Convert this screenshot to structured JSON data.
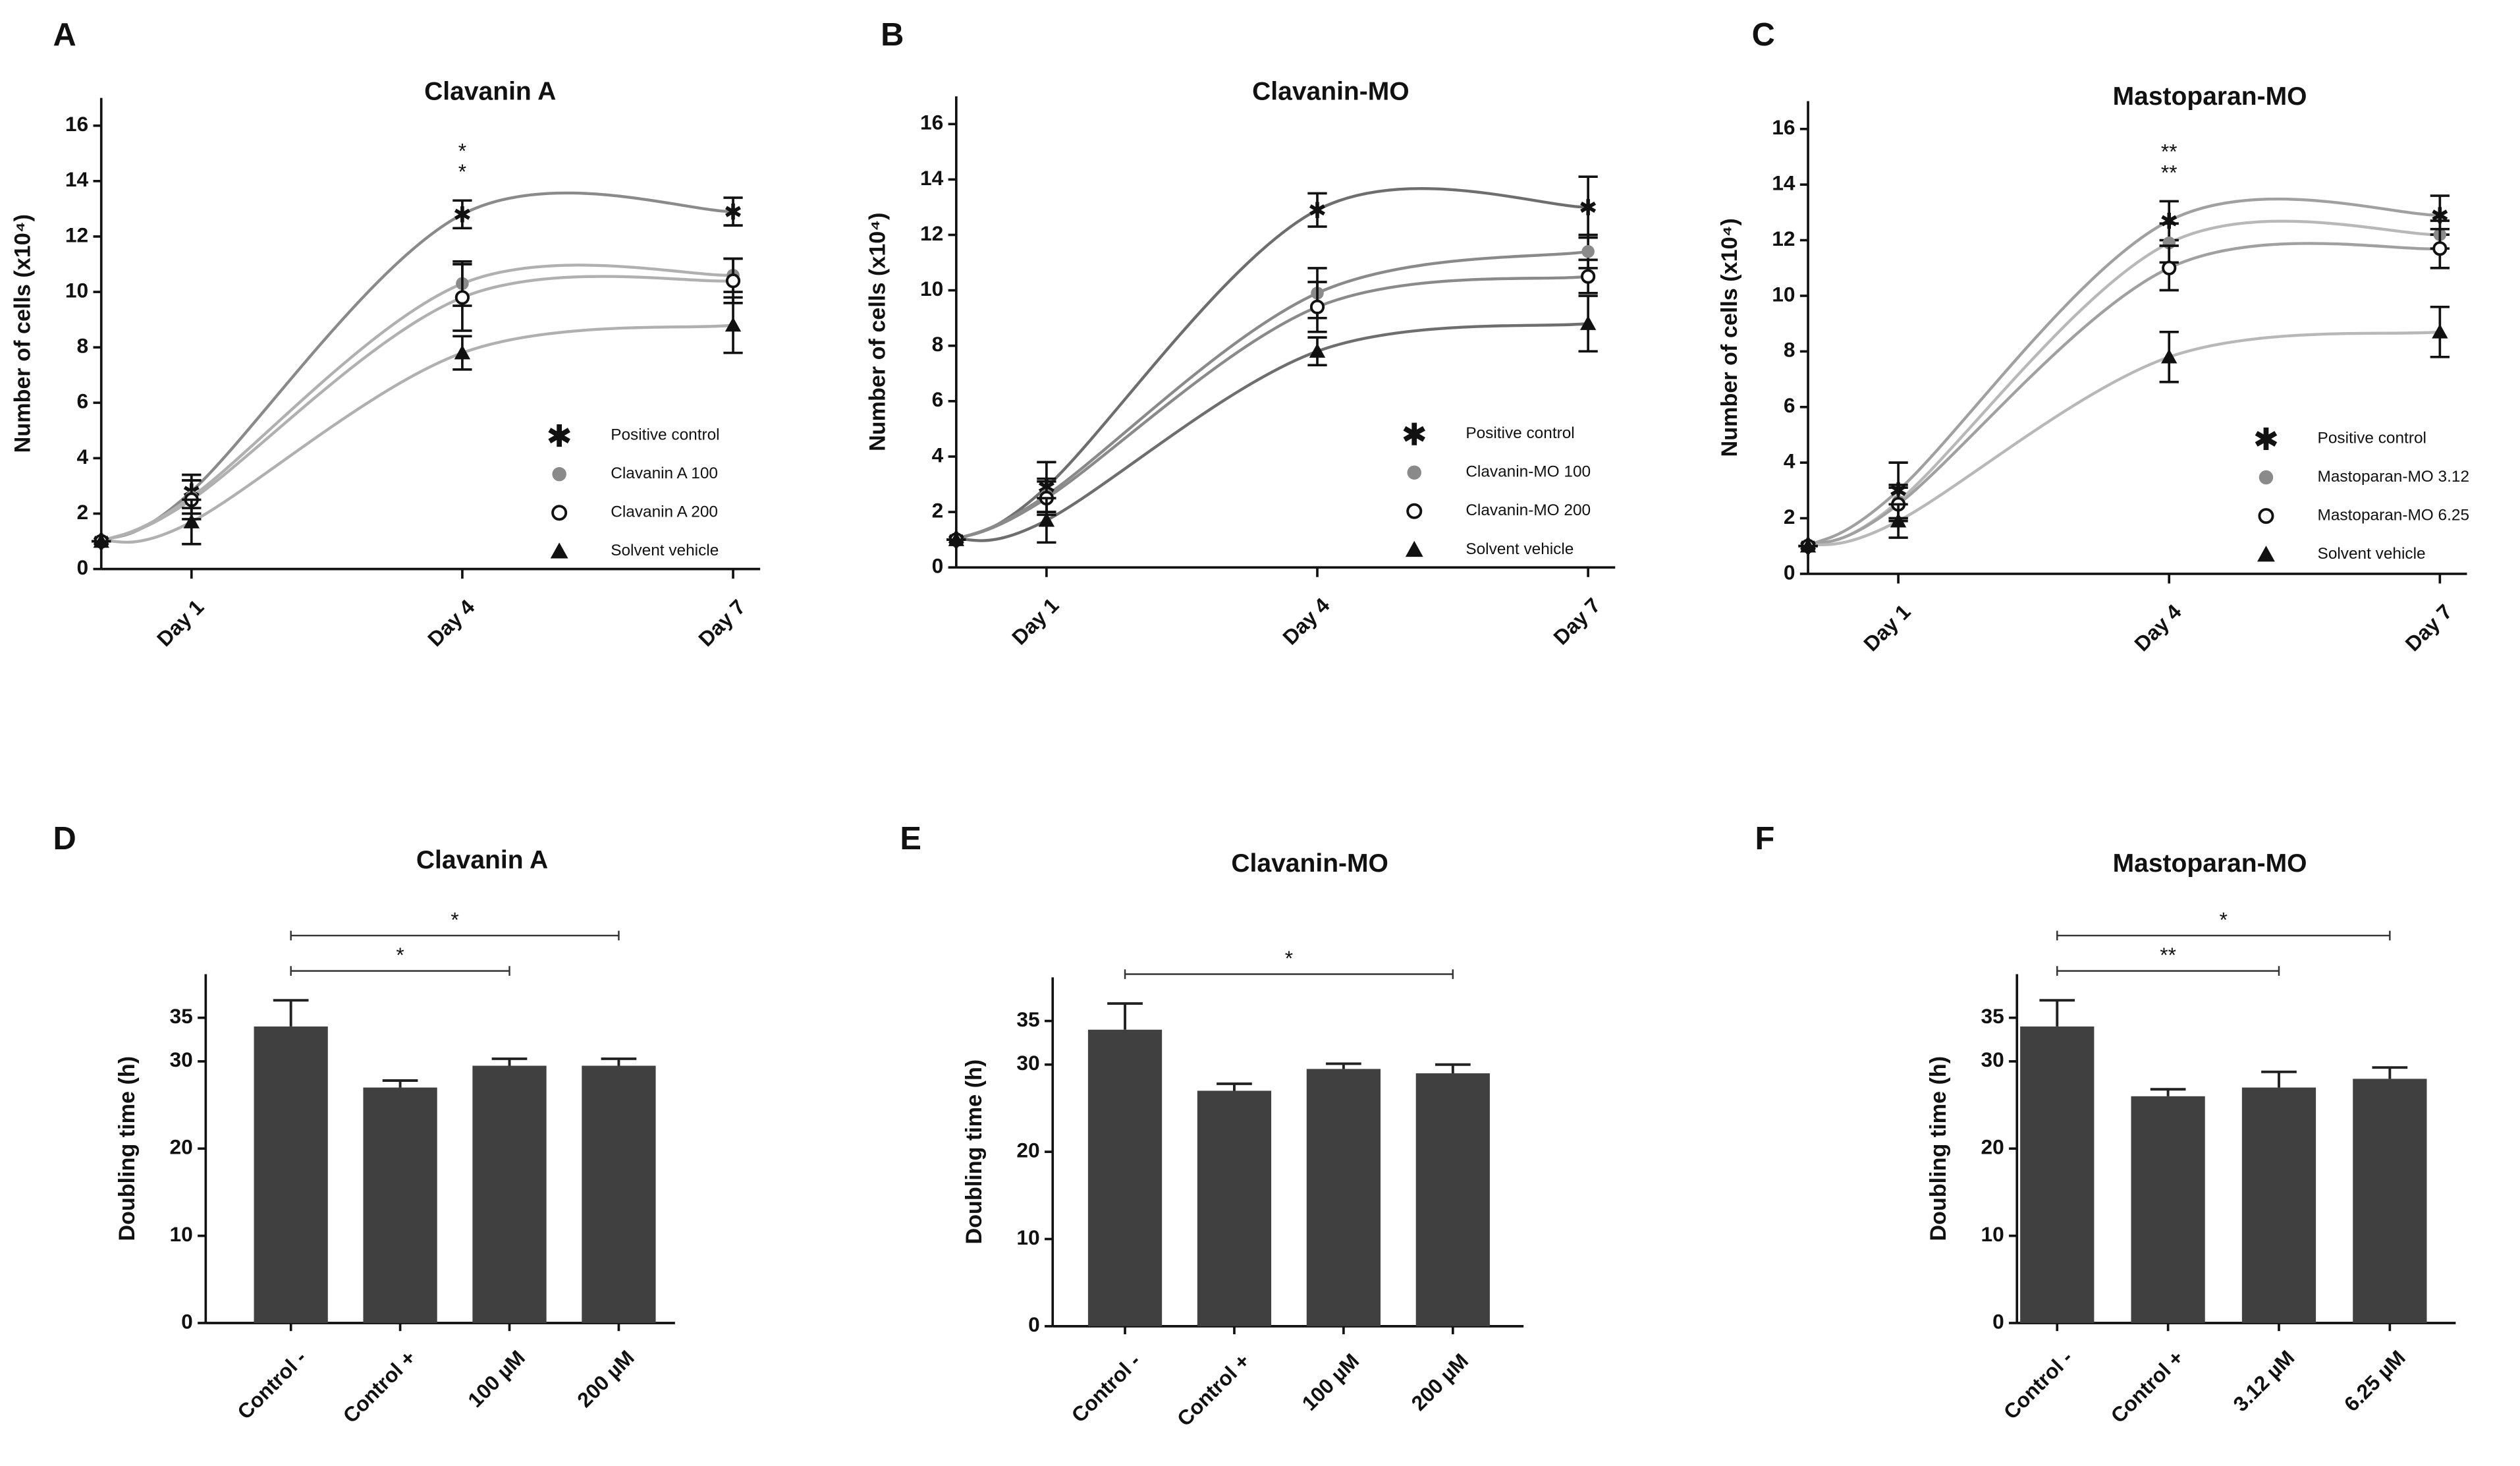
{
  "chart_data": [
    {
      "type": "line",
      "panel": "A",
      "title": "Clavanin A",
      "y_label": "Number of cells (x10⁴)",
      "x": [
        0,
        1,
        4,
        7
      ],
      "xlim": [
        0,
        7.3
      ],
      "xticks": [
        {
          "value": 1,
          "label": "Day 1"
        },
        {
          "value": 4,
          "label": "Day 4"
        },
        {
          "value": 7,
          "label": "Day 7"
        }
      ],
      "ylim": [
        0,
        17
      ],
      "yticks": [
        0,
        2,
        4,
        6,
        8,
        10,
        12,
        14,
        16
      ],
      "annotations": [
        "*",
        "*"
      ],
      "series": [
        {
          "name": "Positive control",
          "color": "#8a8a8a",
          "marker": "star",
          "values": [
            1,
            2.8,
            12.8,
            12.9
          ],
          "errors": [
            0,
            0.6,
            0.5,
            0.5
          ]
        },
        {
          "name": "Clavanin A 100",
          "color": "#b0b0b0",
          "marker": "filled-circle",
          "values": [
            1,
            2.6,
            10.3,
            10.6
          ],
          "errors": [
            0,
            0.6,
            0.8,
            0.6
          ]
        },
        {
          "name": "Clavanin A 200",
          "color": "#b0b0b0",
          "marker": "open-circle",
          "values": [
            1,
            2.5,
            9.8,
            10.4
          ],
          "errors": [
            0,
            0.7,
            1.2,
            0.8
          ]
        },
        {
          "name": "Solvent vehicle",
          "color": "#b0b0b0",
          "marker": "triangle",
          "values": [
            1,
            1.7,
            7.8,
            8.8
          ],
          "errors": [
            0,
            0.8,
            0.6,
            1
          ]
        }
      ]
    },
    {
      "type": "line",
      "panel": "B",
      "title": "Clavanin-MO",
      "y_label": "Number of cells (x10⁴)",
      "x": [
        0,
        1,
        4,
        7
      ],
      "xlim": [
        0,
        7.3
      ],
      "xticks": [
        {
          "value": 1,
          "label": "Day 1"
        },
        {
          "value": 4,
          "label": "Day 4"
        },
        {
          "value": 7,
          "label": "Day 7"
        }
      ],
      "ylim": [
        0,
        17
      ],
      "yticks": [
        0,
        2,
        4,
        6,
        8,
        10,
        12,
        14,
        16
      ],
      "series": [
        {
          "name": "Positive control",
          "color": "#6e6e6e",
          "marker": "star",
          "values": [
            1,
            2.9,
            12.9,
            13.0
          ],
          "errors": [
            0,
            0.9,
            0.6,
            1.1
          ]
        },
        {
          "name": "Clavanin-MO 100",
          "color": "#8a8a8a",
          "marker": "filled-circle",
          "values": [
            1,
            2.6,
            9.9,
            11.4
          ],
          "errors": [
            0,
            0.6,
            0.9,
            0.6
          ]
        },
        {
          "name": "Clavanin-MO 200",
          "color": "#8a8a8a",
          "marker": "open-circle",
          "values": [
            1,
            2.5,
            9.4,
            10.5
          ],
          "errors": [
            0,
            0.6,
            0.9,
            0.6
          ]
        },
        {
          "name": "Solvent vehicle",
          "color": "#6e6e6e",
          "marker": "triangle",
          "values": [
            1,
            1.7,
            7.8,
            8.8
          ],
          "errors": [
            0,
            0.8,
            0.5,
            1
          ]
        }
      ]
    },
    {
      "type": "line",
      "panel": "C",
      "title": "Mastoparan-MO",
      "y_label": "Number of cells (x10⁴)",
      "x": [
        0,
        1,
        4,
        7
      ],
      "xlim": [
        0,
        7.3
      ],
      "xticks": [
        {
          "value": 1,
          "label": "Day 1"
        },
        {
          "value": 4,
          "label": "Day 4"
        },
        {
          "value": 7,
          "label": "Day 7"
        }
      ],
      "ylim": [
        0,
        17
      ],
      "yticks": [
        0,
        2,
        4,
        6,
        8,
        10,
        12,
        14,
        16
      ],
      "annotations": [
        "**",
        "**"
      ],
      "series": [
        {
          "name": "Positive control",
          "color": "#a0a0a0",
          "marker": "star",
          "values": [
            1,
            3.0,
            12.7,
            12.9
          ],
          "errors": [
            0,
            1,
            0.7,
            0.7
          ]
        },
        {
          "name": "Mastoparan-MO 3.12",
          "color": "#b8b8b8",
          "marker": "filled-circle",
          "values": [
            1,
            2.6,
            11.9,
            12.2
          ],
          "errors": [
            0,
            0.6,
            0.7,
            0.5
          ]
        },
        {
          "name": "Mastoparan-MO 6.25",
          "color": "#a0a0a0",
          "marker": "open-circle",
          "values": [
            1,
            2.5,
            11.0,
            11.7
          ],
          "errors": [
            0,
            0.6,
            0.8,
            0.7
          ]
        },
        {
          "name": "Solvent vehicle",
          "color": "#b8b8b8",
          "marker": "triangle",
          "values": [
            1,
            1.9,
            7.8,
            8.7
          ],
          "errors": [
            0,
            0.6,
            0.9,
            0.9
          ]
        }
      ]
    },
    {
      "type": "bar",
      "panel": "D",
      "title": "Clavanin A",
      "y_label": "Doubling time (h)",
      "color": "#404040",
      "categories": [
        "Control -",
        "Control +",
        "100 µM",
        "200 µM"
      ],
      "values": [
        34,
        27,
        29.5,
        29.5
      ],
      "errors": [
        3,
        0.8,
        0.8,
        0.8
      ],
      "ylim": [
        0,
        40
      ],
      "yticks": [
        0,
        10,
        20,
        30,
        35
      ],
      "brackets": [
        {
          "from": 0,
          "to": 2,
          "label": "*"
        },
        {
          "from": 0,
          "to": 3,
          "label": "*"
        }
      ]
    },
    {
      "type": "bar",
      "panel": "E",
      "title": "Clavanin-MO",
      "y_label": "Doubling time (h)",
      "color": "#404040",
      "categories": [
        "Control -",
        "Control +",
        "100 µM",
        "200 µM"
      ],
      "values": [
        34,
        27,
        29.5,
        29
      ],
      "errors": [
        3,
        0.8,
        0.6,
        1
      ],
      "ylim": [
        0,
        40
      ],
      "yticks": [
        0,
        10,
        20,
        30,
        35
      ],
      "brackets": [
        {
          "from": 0,
          "to": 3,
          "label": "*"
        }
      ]
    },
    {
      "type": "bar",
      "panel": "F",
      "title": "Mastoparan-MO",
      "y_label": "Doubling time (h)",
      "color": "#404040",
      "categories": [
        "Control -",
        "Control +",
        "3.12 µM",
        "6.25 µM"
      ],
      "values": [
        34,
        26,
        27,
        28
      ],
      "errors": [
        3,
        0.8,
        1.8,
        1.3
      ],
      "ylim": [
        0,
        40
      ],
      "yticks": [
        0,
        10,
        20,
        30,
        35
      ],
      "brackets": [
        {
          "from": 0,
          "to": 2,
          "label": "**"
        },
        {
          "from": 0,
          "to": 3,
          "label": "*"
        }
      ]
    }
  ]
}
